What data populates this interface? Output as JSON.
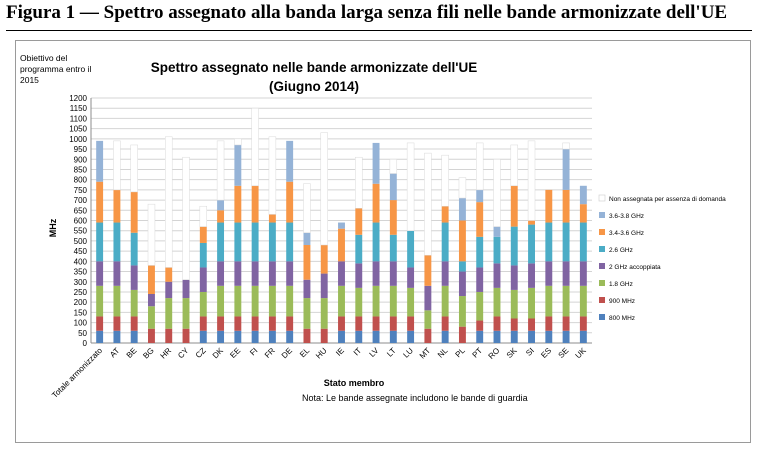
{
  "figure_title": "Figura 1 — Spettro assegnato alla banda larga senza fili nelle bande armonizzate dell'UE",
  "chart_data": {
    "type": "bar",
    "stacked": true,
    "title": "Spettro assegnato nelle bande armonizzate dell'UE",
    "subtitle": "(Giugno 2014)",
    "xlabel": "Stato membro",
    "ylabel": "MHz",
    "ylim": [
      0,
      1200
    ],
    "yticks": [
      0,
      50,
      100,
      150,
      200,
      250,
      300,
      350,
      400,
      450,
      500,
      550,
      600,
      650,
      700,
      750,
      800,
      850,
      900,
      950,
      1000,
      1050,
      1100,
      1150,
      1200
    ],
    "grid": true,
    "legend_position": "right",
    "note": "Nota: Le bande assegnate includono le bande di guardia",
    "target_label": "Obiettivo del programma entro il 2015",
    "categories": [
      "Totale armonizzato",
      "AT",
      "BE",
      "BG",
      "HR",
      "CY",
      "CZ",
      "DK",
      "EE",
      "FI",
      "FR",
      "DE",
      "EL",
      "HU",
      "IE",
      "IT",
      "LV",
      "LT",
      "LU",
      "MT",
      "NL",
      "PL",
      "PT",
      "RO",
      "SK",
      "SI",
      "ES",
      "SE",
      "UK"
    ],
    "series": [
      {
        "name": "800 MHz",
        "color": "#4f81bd",
        "values": [
          60,
          60,
          60,
          0,
          0,
          0,
          60,
          60,
          60,
          60,
          60,
          60,
          0,
          0,
          60,
          60,
          60,
          60,
          60,
          0,
          60,
          0,
          60,
          60,
          60,
          60,
          60,
          60,
          60
        ]
      },
      {
        "name": "900 MHz",
        "color": "#c0504d",
        "values": [
          70,
          70,
          70,
          70,
          70,
          70,
          70,
          70,
          70,
          70,
          70,
          70,
          70,
          70,
          70,
          70,
          70,
          70,
          70,
          70,
          70,
          80,
          50,
          70,
          60,
          60,
          70,
          70,
          70
        ]
      },
      {
        "name": "1.8 GHz",
        "color": "#9bbb59",
        "values": [
          150,
          150,
          130,
          110,
          150,
          150,
          120,
          150,
          150,
          150,
          150,
          150,
          150,
          150,
          150,
          140,
          150,
          150,
          140,
          90,
          150,
          150,
          140,
          140,
          140,
          150,
          150,
          150,
          150
        ]
      },
      {
        "name": "2 GHz accoppiata",
        "color": "#8064a2",
        "values": [
          120,
          120,
          120,
          60,
          80,
          90,
          120,
          120,
          120,
          120,
          120,
          120,
          90,
          120,
          120,
          120,
          120,
          120,
          100,
          120,
          120,
          120,
          120,
          120,
          120,
          120,
          120,
          120,
          120
        ]
      },
      {
        "name": "2.6 GHz",
        "color": "#4bacc6",
        "values": [
          190,
          190,
          160,
          0,
          0,
          0,
          120,
          190,
          190,
          190,
          190,
          190,
          0,
          0,
          0,
          140,
          190,
          130,
          180,
          0,
          190,
          50,
          150,
          130,
          190,
          190,
          190,
          190,
          190
        ]
      },
      {
        "name": "3.4-3.6 GHz",
        "color": "#f79646",
        "values": [
          200,
          160,
          200,
          140,
          70,
          0,
          80,
          60,
          180,
          180,
          40,
          200,
          170,
          140,
          160,
          130,
          190,
          170,
          0,
          150,
          80,
          200,
          170,
          0,
          200,
          20,
          160,
          160,
          90
        ]
      },
      {
        "name": "3.6-3.8 GHz",
        "color": "#95b3d7",
        "values": [
          200,
          0,
          0,
          0,
          0,
          0,
          0,
          50,
          200,
          0,
          0,
          200,
          60,
          0,
          30,
          0,
          200,
          130,
          0,
          0,
          0,
          110,
          60,
          50,
          0,
          0,
          0,
          200,
          90
        ]
      },
      {
        "name": "Non assegnata per assenza di domanda",
        "color": "#ffffff",
        "values": [
          0,
          240,
          230,
          300,
          640,
          600,
          100,
          290,
          30,
          380,
          380,
          0,
          240,
          550,
          0,
          250,
          0,
          70,
          430,
          500,
          250,
          100,
          230,
          330,
          200,
          390,
          0,
          30,
          0
        ]
      }
    ]
  }
}
